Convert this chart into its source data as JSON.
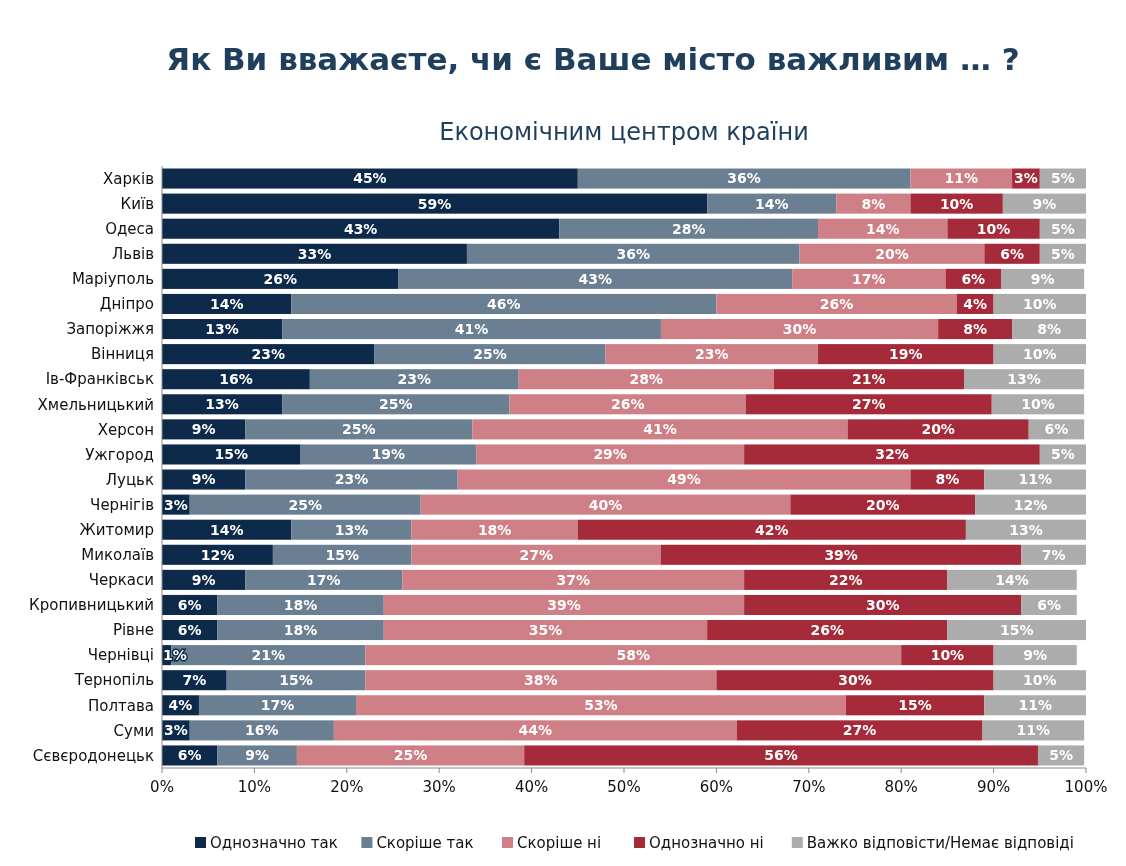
{
  "chart_data": {
    "type": "bar",
    "orientation": "horizontal",
    "stacked": true,
    "title": "Як Ви вважаєте, чи є Ваше місто важливим … ?",
    "subtitle": "Економічним центром країни",
    "categories": [
      "Харків",
      "Київ",
      "Одеса",
      "Львів",
      "Маріуполь",
      "Дніпро",
      "Запоріжжя",
      "Вінниця",
      "Ів-Франківськ",
      "Хмельницький",
      "Херсон",
      "Ужгород",
      "Луцьк",
      "Чернігів",
      "Житомир",
      "Миколаїв",
      "Черкаси",
      "Кропивницький",
      "Рівне",
      "Чернівці",
      "Тернопіль",
      "Полтава",
      "Суми",
      "Сєвєродонецьк"
    ],
    "xlim": [
      0,
      100
    ],
    "xticks": [
      {
        "value": 0,
        "label": "0%"
      },
      {
        "value": 10,
        "label": "10%"
      },
      {
        "value": 20,
        "label": "20%"
      },
      {
        "value": 30,
        "label": "30%"
      },
      {
        "value": 40,
        "label": "40%"
      },
      {
        "value": 50,
        "label": "50%"
      },
      {
        "value": 60,
        "label": "60%"
      },
      {
        "value": 70,
        "label": "70%"
      },
      {
        "value": 80,
        "label": "80%"
      },
      {
        "value": 90,
        "label": "90%"
      },
      {
        "value": 100,
        "label": "100%"
      }
    ],
    "legend": "bottom",
    "grid": false,
    "series": [
      {
        "name": "Однозначно так",
        "color": "#0d2a4a",
        "values": [
          45,
          59,
          43,
          33,
          25.6,
          14,
          13,
          23,
          16,
          13,
          9,
          15,
          9,
          3,
          14,
          12,
          9,
          6,
          6,
          1,
          7,
          4,
          3,
          6
        ],
        "value_labels": [
          "45%",
          "59%",
          "43%",
          "33%",
          "26%",
          "14%",
          "13%",
          "23%",
          "16%",
          "13%",
          "9%",
          "15%",
          "9%",
          "3%",
          "14%",
          "12%",
          "9%",
          "6%",
          "6%",
          "1%",
          "7%",
          "4%",
          "3%",
          "6%"
        ]
      },
      {
        "name": "Скоріше так",
        "color": "#6b7f92",
        "values": [
          36,
          14,
          28,
          36,
          42.6,
          46,
          41,
          25,
          22.6,
          24.6,
          24.6,
          19,
          23,
          25,
          13,
          15,
          17,
          18,
          18,
          21,
          15,
          17,
          15.6,
          8.6
        ],
        "value_labels": [
          "36%",
          "14%",
          "28%",
          "36%",
          "43%",
          "46%",
          "41%",
          "25%",
          "23%",
          "25%",
          "25%",
          "19%",
          "23%",
          "25%",
          "13%",
          "15%",
          "17%",
          "18%",
          "18%",
          "21%",
          "15%",
          "17%",
          "16%",
          "9%"
        ]
      },
      {
        "name": "Скоріше ні",
        "color": "#cf7f86",
        "values": [
          11,
          8,
          14,
          20,
          16.6,
          26,
          30,
          23,
          27.6,
          25.6,
          40.6,
          29,
          49,
          40,
          18,
          27,
          37,
          39,
          35,
          58,
          38,
          53,
          43.6,
          24.6
        ],
        "value_labels": [
          "11%",
          "8%",
          "14%",
          "20%",
          "17%",
          "26%",
          "30%",
          "23%",
          "28%",
          "26%",
          "41%",
          "29%",
          "49%",
          "40%",
          "18%",
          "27%",
          "37%",
          "39%",
          "35%",
          "58%",
          "38%",
          "53%",
          "44%",
          "25%"
        ]
      },
      {
        "name": "Однозначно ні",
        "color": "#a52a3a",
        "values": [
          3,
          10,
          10,
          6,
          6,
          4,
          8,
          19,
          20.6,
          26.6,
          19.6,
          32,
          8,
          20,
          42,
          39,
          22,
          30,
          26,
          10,
          30,
          15,
          26.6,
          55.6
        ],
        "value_labels": [
          "3%",
          "10%",
          "10%",
          "6%",
          "6%",
          "4%",
          "8%",
          "19%",
          "21%",
          "27%",
          "20%",
          "32%",
          "8%",
          "20%",
          "42%",
          "39%",
          "22%",
          "30%",
          "26%",
          "10%",
          "30%",
          "15%",
          "27%",
          "56%"
        ]
      },
      {
        "name": "Важко відповісти/Немає відповіді",
        "color": "#acacac",
        "values": [
          5,
          9,
          5,
          5,
          9,
          10,
          8,
          10,
          13,
          10,
          6,
          5,
          11,
          12,
          13,
          7,
          14,
          6,
          15,
          9,
          10,
          11,
          11,
          5
        ],
        "value_labels": [
          "5%",
          "9%",
          "5%",
          "5%",
          "9%",
          "10%",
          "8%",
          "10%",
          "13%",
          "10%",
          "6%",
          "5%",
          "11%",
          "12%",
          "13%",
          "7%",
          "14%",
          "6%",
          "15%",
          "9%",
          "10%",
          "11%",
          "11%",
          "5%"
        ]
      }
    ]
  }
}
